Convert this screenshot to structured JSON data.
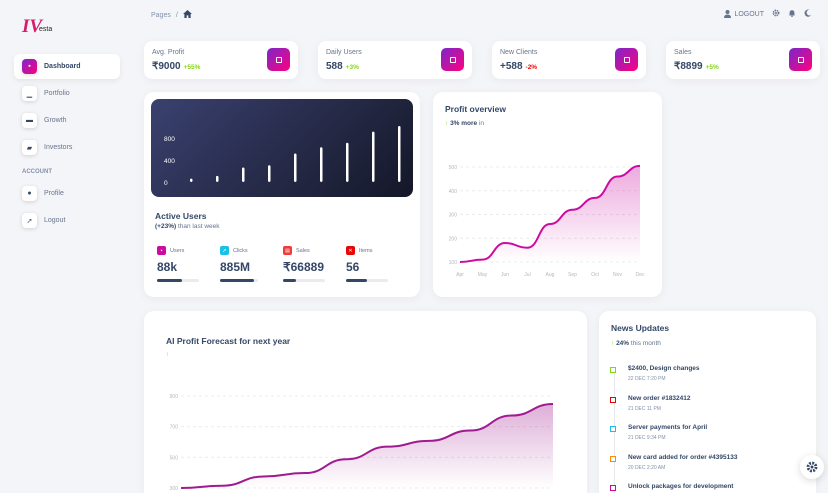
{
  "logo": {
    "mark": "IV",
    "text": "esta"
  },
  "sidebar": {
    "items": [
      {
        "label": "Dashboard",
        "icon": "dashboard-icon"
      },
      {
        "label": "Portfolio",
        "icon": "chart-icon"
      },
      {
        "label": "Growth",
        "icon": "card-icon"
      },
      {
        "label": "Investors",
        "icon": "people-icon"
      }
    ],
    "section_label": "ACCOUNT",
    "account_items": [
      {
        "label": "Profile",
        "icon": "user-icon"
      },
      {
        "label": "Logout",
        "icon": "rocket-icon"
      }
    ]
  },
  "breadcrumb": {
    "root": "Pages",
    "separator": "/",
    "current_icon": "home-icon"
  },
  "topbar": {
    "logout_label": "LOGOUT"
  },
  "stats": [
    {
      "label": "Avg. Profit",
      "value": "₹9000",
      "change": "+55%",
      "trend": "up"
    },
    {
      "label": "Daily Users",
      "value": "588",
      "change": "+3%",
      "trend": "up"
    },
    {
      "label": "New Clients",
      "value": "+588",
      "change": "-2%",
      "trend": "down"
    },
    {
      "label": "Sales",
      "value": "₹8899",
      "change": "+5%",
      "trend": "up"
    }
  ],
  "active_users": {
    "title": "Active Users",
    "subtitle_bold": "(+23%)",
    "subtitle_rest": " than last week",
    "metrics": [
      {
        "label": "Users",
        "value": "88k",
        "progress": 0.6,
        "color": "#cb0c9f",
        "icon": "user-icon"
      },
      {
        "label": "Clicks",
        "value": "885M",
        "progress": 0.9,
        "color": "#17c1e8",
        "icon": "cursor-icon"
      },
      {
        "label": "Sales",
        "value": "₹66889",
        "progress": 0.3,
        "color": "#f53939",
        "icon": "cart-icon"
      },
      {
        "label": "Items",
        "value": "56",
        "progress": 0.5,
        "color": "#ea0606",
        "icon": "tool-icon"
      }
    ]
  },
  "chart_data": [
    {
      "type": "bar",
      "title": "",
      "yticks": [
        "800",
        "400",
        "0"
      ],
      "ylim": [
        0,
        800
      ],
      "values": [
        60,
        110,
        260,
        300,
        510,
        620,
        700,
        900,
        1000
      ],
      "color": "#ffffff"
    },
    {
      "type": "area",
      "title": "Profit overview",
      "subtitle_bold": "3% more",
      "subtitle_rest": " in",
      "categories": [
        "Apr",
        "May",
        "Jun",
        "Jul",
        "Aug",
        "Sep",
        "Oct",
        "Nov",
        "Dec"
      ],
      "yticks": [
        "500",
        "400",
        "300",
        "200",
        "100"
      ],
      "ylim": [
        100,
        500
      ],
      "values": [
        100,
        110,
        180,
        160,
        260,
        320,
        370,
        460,
        505
      ],
      "color": "#cb0c9f"
    },
    {
      "type": "area",
      "title": "AI Profit Forecast for next year",
      "yticks": [
        "900",
        "700",
        "500",
        "300"
      ],
      "ylim": [
        100,
        900
      ],
      "values": [
        100,
        120,
        200,
        230,
        350,
        460,
        510,
        600,
        730,
        830
      ],
      "color": "#a01b8f"
    }
  ],
  "news": {
    "title": "News Updates",
    "subtitle_bold": "24%",
    "subtitle_rest": " this month",
    "items": [
      {
        "title": "$2400, Design changes",
        "date": "22 DEC 7:20 PM",
        "color": "#82d616"
      },
      {
        "title": "New order #1832412",
        "date": "21 DEC 11 PM",
        "color": "#ea0606"
      },
      {
        "title": "Server payments for April",
        "date": "21 DEC 9:34 PM",
        "color": "#17c1e8"
      },
      {
        "title": "New card added for order #4395133",
        "date": "20 DEC 2:20 AM",
        "color": "#fb8c00"
      },
      {
        "title": "Unlock packages for development",
        "date": "",
        "color": "#cb0c9f"
      }
    ]
  }
}
